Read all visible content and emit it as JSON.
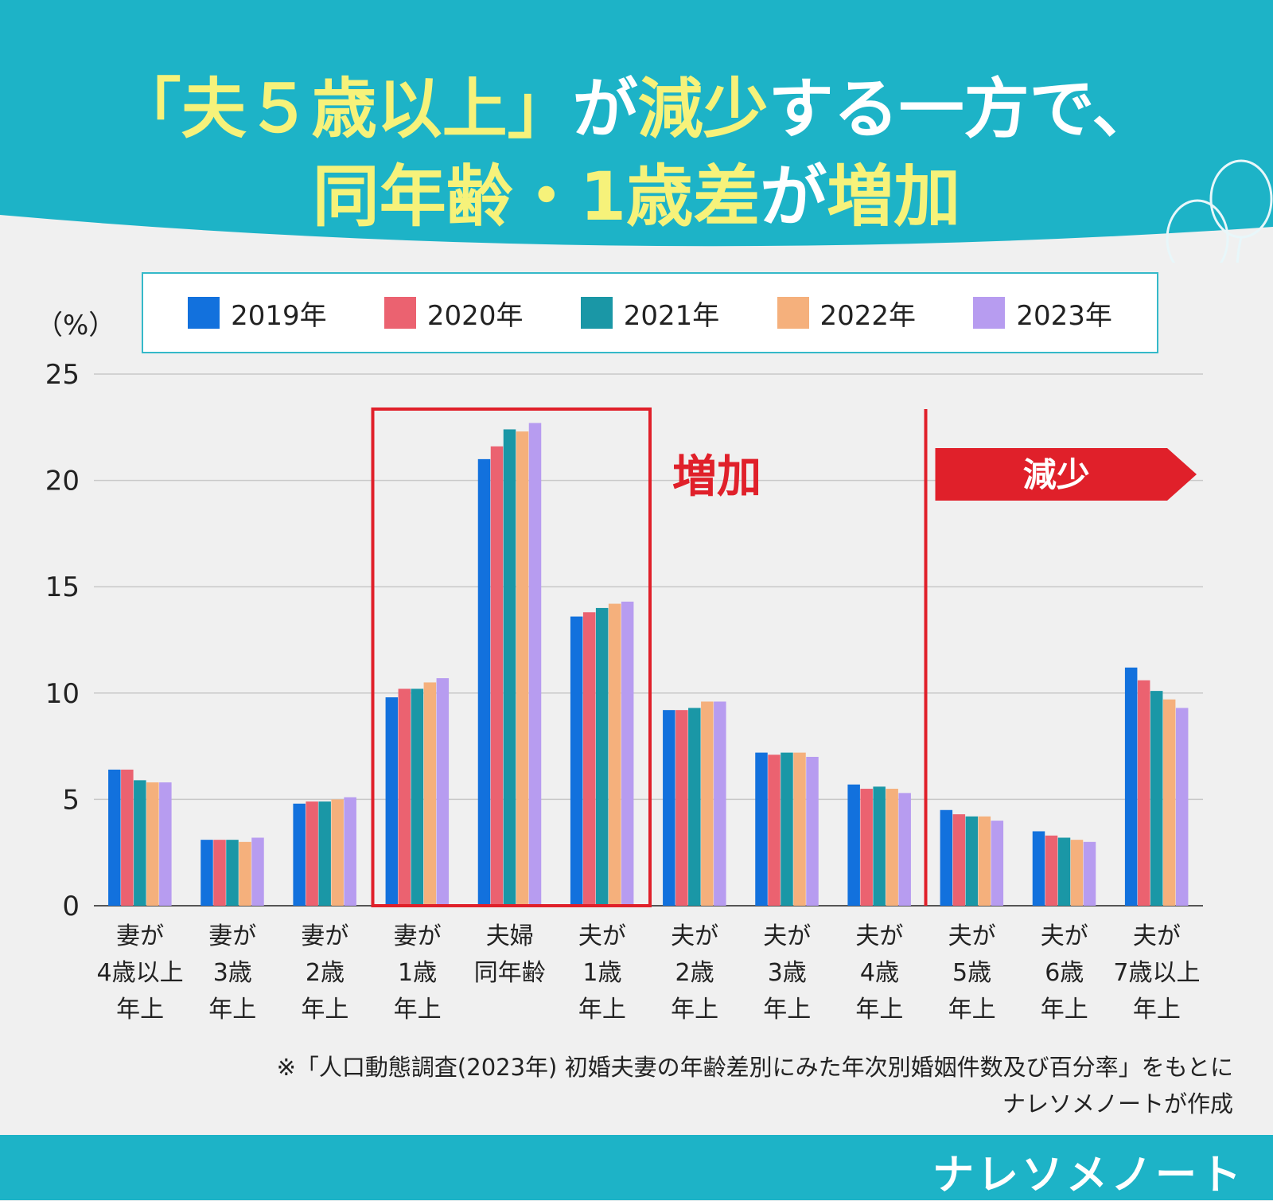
{
  "header": {
    "title_line1_parts": [
      {
        "text": "「夫５歳以上」",
        "hl": true
      },
      {
        "text": "が",
        "hl": false
      },
      {
        "text": "減少",
        "hl": true
      },
      {
        "text": "する一方で、",
        "hl": false
      }
    ],
    "title_line2_parts": [
      {
        "text": "同年齢・1歳差",
        "hl": true
      },
      {
        "text": "が",
        "hl": false
      },
      {
        "text": "増加",
        "hl": true
      }
    ]
  },
  "colors": {
    "header_bg": "#1db3c7",
    "highlight": "#f6f27a",
    "annotation_red": "#e0202a",
    "series": [
      "#1271dd",
      "#eb6270",
      "#1a97a6",
      "#f5b07c",
      "#b79cf0"
    ]
  },
  "chart_data": {
    "type": "bar",
    "title": "",
    "ylabel": "（%）",
    "xlabel": "",
    "ylim": [
      0,
      25
    ],
    "yticks": [
      0,
      5,
      10,
      15,
      20,
      25
    ],
    "categories": [
      [
        "妻が",
        "4歳以上",
        "年上"
      ],
      [
        "妻が",
        "3歳",
        "年上"
      ],
      [
        "妻が",
        "2歳",
        "年上"
      ],
      [
        "妻が",
        "1歳",
        "年上"
      ],
      [
        "夫婦",
        "同年齢"
      ],
      [
        "夫が",
        "1歳",
        "年上"
      ],
      [
        "夫が",
        "2歳",
        "年上"
      ],
      [
        "夫が",
        "3歳",
        "年上"
      ],
      [
        "夫が",
        "4歳",
        "年上"
      ],
      [
        "夫が",
        "5歳",
        "年上"
      ],
      [
        "夫が",
        "6歳",
        "年上"
      ],
      [
        "夫が",
        "7歳以上",
        "年上"
      ]
    ],
    "series": [
      {
        "name": "2019年",
        "values": [
          6.4,
          3.1,
          4.8,
          9.8,
          21.0,
          13.6,
          9.2,
          7.2,
          5.7,
          4.5,
          3.5,
          11.2
        ]
      },
      {
        "name": "2020年",
        "values": [
          6.4,
          3.1,
          4.9,
          10.2,
          21.6,
          13.8,
          9.2,
          7.1,
          5.5,
          4.3,
          3.3,
          10.6
        ]
      },
      {
        "name": "2021年",
        "values": [
          5.9,
          3.1,
          4.9,
          10.2,
          22.4,
          14.0,
          9.3,
          7.2,
          5.6,
          4.2,
          3.2,
          10.1
        ]
      },
      {
        "name": "2022年",
        "values": [
          5.8,
          3.0,
          5.0,
          10.5,
          22.3,
          14.2,
          9.6,
          7.2,
          5.5,
          4.2,
          3.1,
          9.7
        ]
      },
      {
        "name": "2023年",
        "values": [
          5.8,
          3.2,
          5.1,
          10.7,
          22.7,
          14.3,
          9.6,
          7.0,
          5.3,
          4.0,
          3.0,
          9.3
        ]
      }
    ],
    "annotations": {
      "increase_label": "増加",
      "increase_range": [
        3,
        5
      ],
      "decrease_label": "減少",
      "decrease_from_category": 9
    }
  },
  "note": {
    "line1": "※「人口動態調査(2023年) 初婚夫妻の年齢差別にみた年次別婚姻件数及び百分率」をもとに",
    "line2": "ナレソメノートが作成"
  },
  "footer": {
    "brand": "ナレソメノート"
  }
}
